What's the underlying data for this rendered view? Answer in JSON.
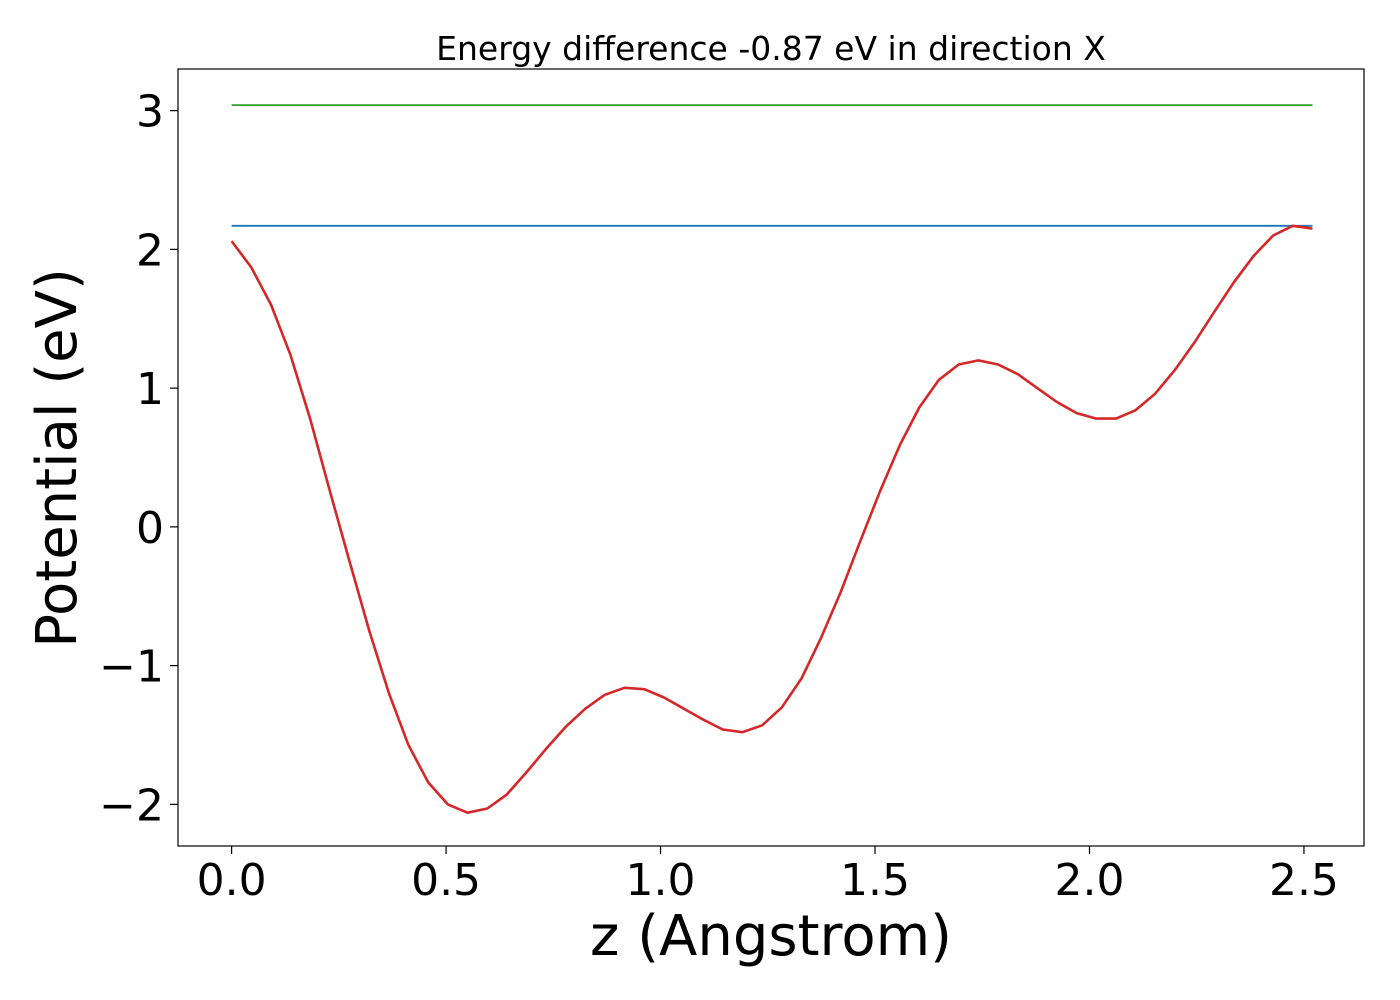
{
  "chart_data": {
    "type": "line",
    "title": "Energy difference -0.87 eV in direction X",
    "xlabel": "z (Angstrom)",
    "ylabel": "Potential (eV)",
    "xlim": [
      -0.125,
      2.64
    ],
    "ylim": [
      -2.3,
      3.3
    ],
    "xticks": [
      0.0,
      0.5,
      1.0,
      1.5,
      2.0,
      2.5
    ],
    "xtick_labels": [
      "0.0",
      "0.5",
      "1.0",
      "1.5",
      "2.0",
      "2.5"
    ],
    "yticks": [
      -2,
      -1,
      0,
      1,
      2,
      3
    ],
    "ytick_labels": [
      "−2",
      "−1",
      "0",
      "1",
      "2",
      "3"
    ],
    "grid": false,
    "series": [
      {
        "color": "#2ca02c",
        "x": [
          0.0,
          2.52
        ],
        "y": [
          3.04,
          3.04
        ]
      },
      {
        "color": "#1f77b4",
        "x": [
          0.0,
          2.52
        ],
        "y": [
          2.17,
          2.17
        ]
      },
      {
        "color": "#d62728",
        "x": [
          0.0,
          0.046,
          0.092,
          0.137,
          0.183,
          0.229,
          0.275,
          0.321,
          0.367,
          0.412,
          0.458,
          0.504,
          0.55,
          0.596,
          0.641,
          0.687,
          0.733,
          0.779,
          0.825,
          0.87,
          0.916,
          0.962,
          1.008,
          1.054,
          1.1,
          1.145,
          1.191,
          1.237,
          1.283,
          1.329,
          1.374,
          1.42,
          1.466,
          1.512,
          1.558,
          1.603,
          1.649,
          1.695,
          1.741,
          1.787,
          1.833,
          1.878,
          1.924,
          1.97,
          2.016,
          2.062,
          2.107,
          2.153,
          2.199,
          2.245,
          2.291,
          2.336,
          2.382,
          2.428,
          2.474,
          2.52
        ],
        "y": [
          2.06,
          1.87,
          1.6,
          1.24,
          0.78,
          0.26,
          -0.25,
          -0.75,
          -1.2,
          -1.57,
          -1.84,
          -2.0,
          -2.06,
          -2.03,
          -1.93,
          -1.77,
          -1.6,
          -1.44,
          -1.31,
          -1.21,
          -1.16,
          -1.17,
          -1.23,
          -1.31,
          -1.39,
          -1.46,
          -1.48,
          -1.43,
          -1.3,
          -1.09,
          -0.8,
          -0.47,
          -0.1,
          0.26,
          0.59,
          0.86,
          1.06,
          1.17,
          1.2,
          1.17,
          1.1,
          1.0,
          0.9,
          0.82,
          0.78,
          0.78,
          0.84,
          0.96,
          1.13,
          1.33,
          1.55,
          1.76,
          1.95,
          2.1,
          2.17,
          2.15
        ]
      }
    ]
  }
}
